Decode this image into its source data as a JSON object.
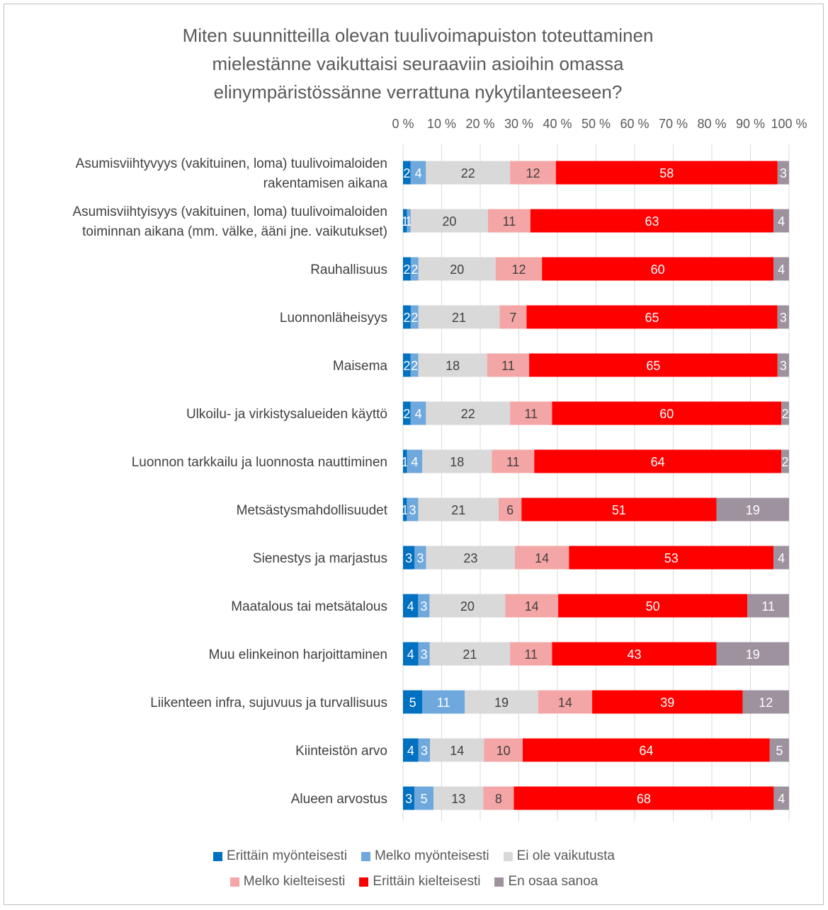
{
  "chart_data": {
    "type": "bar",
    "orientation": "horizontal",
    "stacking": "percent",
    "title": "Miten suunnitteilla olevan tuulivoimapuiston toteuttaminen mielestänne vaikuttaisi seuraaviin asioihin omassa elinympäristössänne verrattuna nykytilanteeseen?",
    "title_lines": [
      "Miten suunnitteilla olevan tuulivoimapuiston toteuttaminen",
      "mielestänne vaikuttaisi seuraaviin asioihin omassa",
      "elinympäristössänne verrattuna nykytilanteeseen?"
    ],
    "xlim": [
      0,
      100
    ],
    "x_ticks": [
      "0 %",
      "10 %",
      "20 %",
      "30 %",
      "40 %",
      "50 %",
      "60 %",
      "70 %",
      "80 %",
      "90 %",
      "100 %"
    ],
    "grid": true,
    "legend_position": "bottom",
    "categories": [
      [
        "Asumisviihtyvyys (vakituinen, loma) tuulivoimaloiden",
        "rakentamisen aikana"
      ],
      [
        "Asumisviihtyisyys (vakituinen, loma) tuulivoimaloiden",
        "toiminnan aikana (mm. välke, ääni jne. vaikutukset)"
      ],
      [
        "Rauhallisuus"
      ],
      [
        "Luonnonläheisyys"
      ],
      [
        "Maisema"
      ],
      [
        "Ulkoilu- ja virkistysalueiden käyttö"
      ],
      [
        "Luonnon tarkkailu ja luonnosta nauttiminen"
      ],
      [
        "Metsästysmahdollisuudet"
      ],
      [
        "Sienestys ja marjastus"
      ],
      [
        "Maatalous tai metsätalous"
      ],
      [
        "Muu elinkeinon harjoittaminen"
      ],
      [
        "Liikenteen infra, sujuvuus ja turvallisuus"
      ],
      [
        "Kiinteistön arvo"
      ],
      [
        "Alueen arvostus"
      ]
    ],
    "series": [
      {
        "name": "Erittäin myönteisesti",
        "color": "#0070c0",
        "label_color": "#ffffff",
        "values": [
          2,
          1,
          2,
          2,
          2,
          2,
          1,
          1,
          3,
          4,
          4,
          5,
          4,
          3
        ]
      },
      {
        "name": "Melko myönteisesti",
        "color": "#6fa8dc",
        "label_color": "#ffffff",
        "values": [
          4,
          1,
          2,
          2,
          2,
          4,
          4,
          3,
          3,
          3,
          3,
          11,
          3,
          5
        ]
      },
      {
        "name": "Ei ole vaikutusta",
        "color": "#d9d9d9",
        "label_color": "#404040",
        "values": [
          22,
          20,
          20,
          21,
          18,
          22,
          18,
          21,
          23,
          20,
          21,
          19,
          14,
          13
        ]
      },
      {
        "name": "Melko kielteisesti",
        "color": "#f4a6a6",
        "label_color": "#404040",
        "values": [
          12,
          11,
          12,
          7,
          11,
          11,
          11,
          6,
          14,
          14,
          11,
          14,
          10,
          8
        ]
      },
      {
        "name": "Erittäin kielteisesti",
        "color": "#ff0000",
        "label_color": "#ffffff",
        "values": [
          58,
          63,
          60,
          65,
          65,
          60,
          64,
          51,
          53,
          50,
          43,
          39,
          64,
          68
        ]
      },
      {
        "name": "En osaa sanoa",
        "color": "#9e929e",
        "label_color": "#ffffff",
        "values": [
          3,
          4,
          4,
          3,
          3,
          2,
          2,
          19,
          4,
          11,
          19,
          12,
          5,
          4
        ]
      }
    ]
  }
}
